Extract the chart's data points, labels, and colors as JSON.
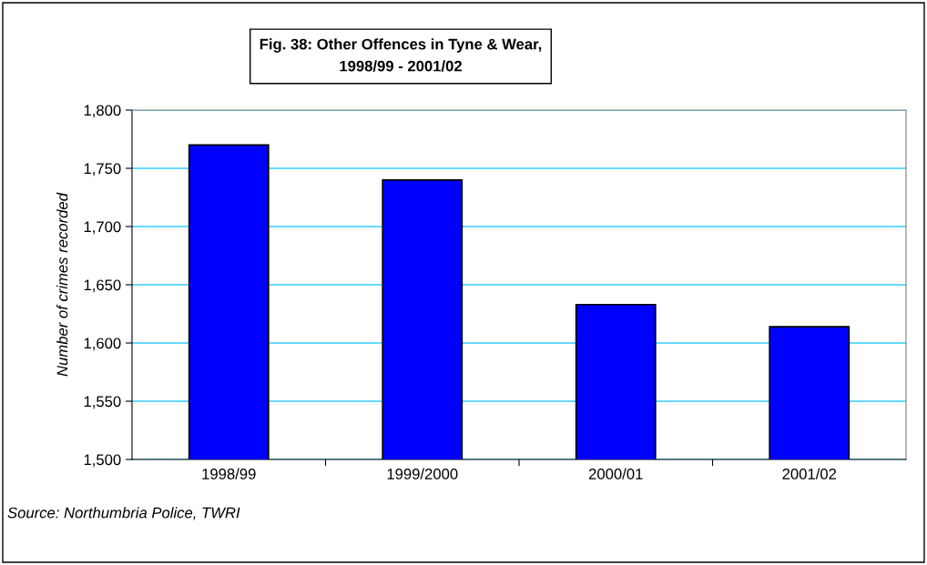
{
  "chart_data": {
    "type": "bar",
    "title": "Fig. 38: Other Offences in Tyne & Wear,\n1998/99 - 2001/02",
    "ylabel": "Number of crimes recorded",
    "categories": [
      "1998/99",
      "1999/2000",
      "2000/01",
      "2001/02"
    ],
    "values": [
      1770,
      1740,
      1633,
      1614
    ],
    "color": "#0000ff",
    "ylim": [
      1500,
      1800
    ],
    "yticks": [
      {
        "value": 1500,
        "label": "1,500"
      },
      {
        "value": 1550,
        "label": "1,550"
      },
      {
        "value": 1600,
        "label": "1,600"
      },
      {
        "value": 1650,
        "label": "1,650"
      },
      {
        "value": 1700,
        "label": "1,700"
      },
      {
        "value": 1750,
        "label": "1,750"
      },
      {
        "value": 1800,
        "label": "1,800"
      }
    ],
    "grid": "y",
    "annotations": [
      "Source: Northumbria Police, TWRI"
    ]
  }
}
